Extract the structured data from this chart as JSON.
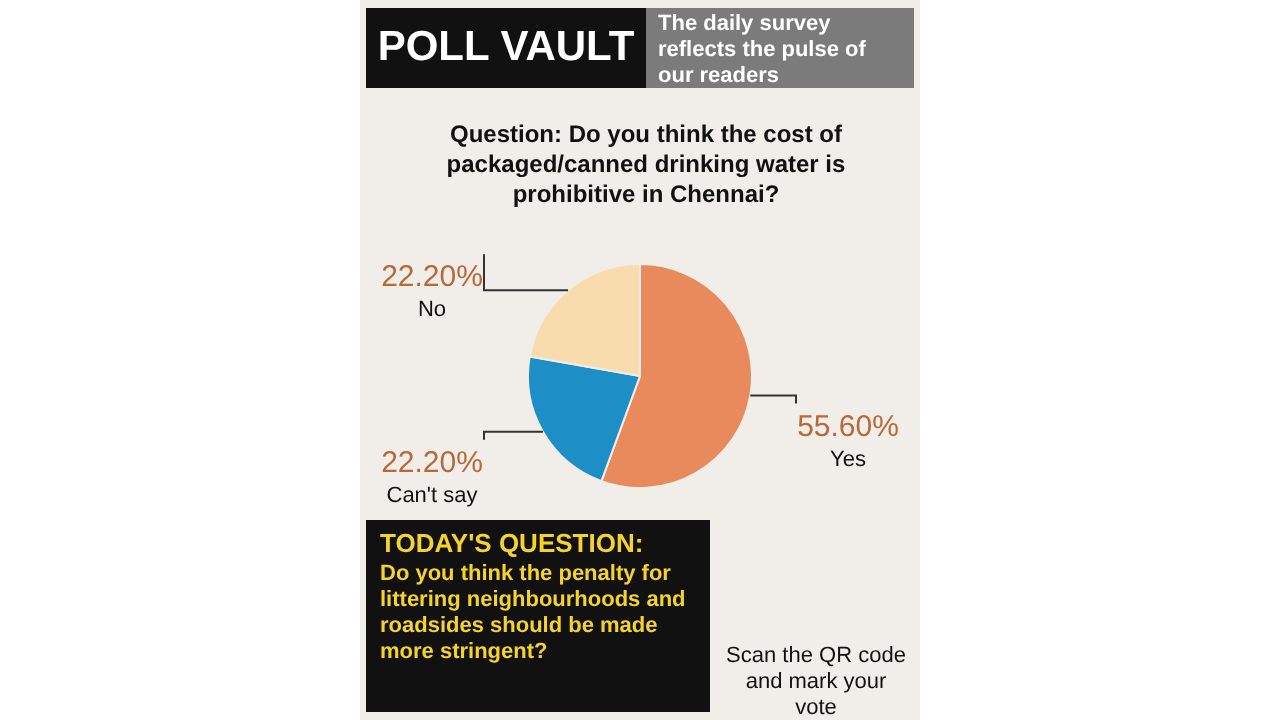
{
  "chart_data": {
    "type": "pie",
    "title": "Question: Do you think the cost of packaged/canned drinking water is prohibitive in Chennai?",
    "categories": [
      "Yes",
      "Can't say",
      "No"
    ],
    "values": [
      55.6,
      22.2,
      22.2
    ],
    "colors": [
      "#e98a5c",
      "#1e8fc6",
      "#f8dcae"
    ],
    "value_labels": [
      "55.60%",
      "22.20%",
      "22.20%"
    ],
    "legend": false,
    "annotations": [
      "POLL VAULT",
      "The daily survey reflects the pulse of our readers",
      "TODAY'S QUESTION:",
      "Do you think the penalty for littering neighbourhoods and roadsides should be made more stringent?",
      "Scan the QR code and mark your vote"
    ]
  }
}
